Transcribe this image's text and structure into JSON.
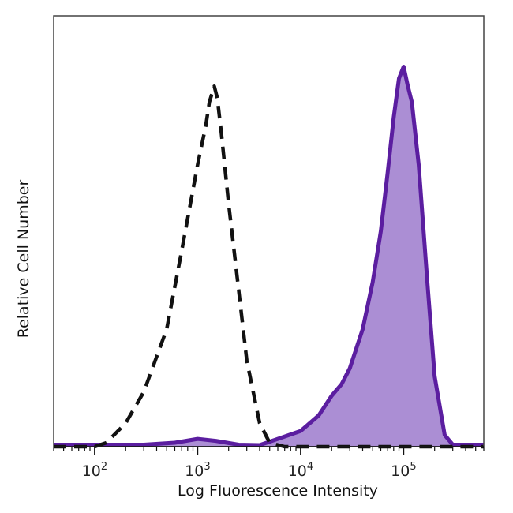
{
  "chart_data": {
    "type": "area",
    "title": "",
    "xlabel": "Log Fluorescence Intensity",
    "ylabel": "Relative Cell Number",
    "x_scale": "log",
    "xlim": [
      40,
      600000
    ],
    "ylim": [
      0,
      1.1
    ],
    "x_ticks": [
      {
        "value": 100,
        "base": "10",
        "exp": "2"
      },
      {
        "value": 1000,
        "base": "10",
        "exp": "3"
      },
      {
        "value": 10000,
        "base": "10",
        "exp": "4"
      },
      {
        "value": 100000,
        "base": "10",
        "exp": "5"
      }
    ],
    "grid": false,
    "legend": "none",
    "series": [
      {
        "style": "dashed",
        "color": "#111111",
        "fill": "none",
        "x": [
          40,
          100,
          130,
          200,
          300,
          500,
          700,
          1000,
          1200,
          1300,
          1450,
          1550,
          1700,
          2000,
          2500,
          3000,
          4000,
          5000,
          7000,
          10000,
          600000
        ],
        "y": [
          0,
          0,
          0.01,
          0.06,
          0.14,
          0.3,
          0.5,
          0.72,
          0.82,
          0.88,
          0.92,
          0.89,
          0.8,
          0.62,
          0.4,
          0.22,
          0.06,
          0.01,
          0,
          0,
          0
        ]
      },
      {
        "style": "solid",
        "color": "#5b1ea0",
        "fill": "#ab8ed4",
        "x": [
          40,
          300,
          600,
          1000,
          1500,
          2500,
          4000,
          6000,
          10000,
          15000,
          20000,
          25000,
          30000,
          40000,
          50000,
          60000,
          70000,
          80000,
          90000,
          100000,
          110000,
          120000,
          140000,
          170000,
          200000,
          250000,
          300000,
          600000
        ],
        "y": [
          0.005,
          0.005,
          0.01,
          0.02,
          0.015,
          0.005,
          0.004,
          0.02,
          0.04,
          0.08,
          0.13,
          0.16,
          0.2,
          0.3,
          0.42,
          0.55,
          0.7,
          0.84,
          0.94,
          0.97,
          0.92,
          0.88,
          0.72,
          0.42,
          0.18,
          0.03,
          0.005,
          0.005
        ]
      }
    ]
  }
}
